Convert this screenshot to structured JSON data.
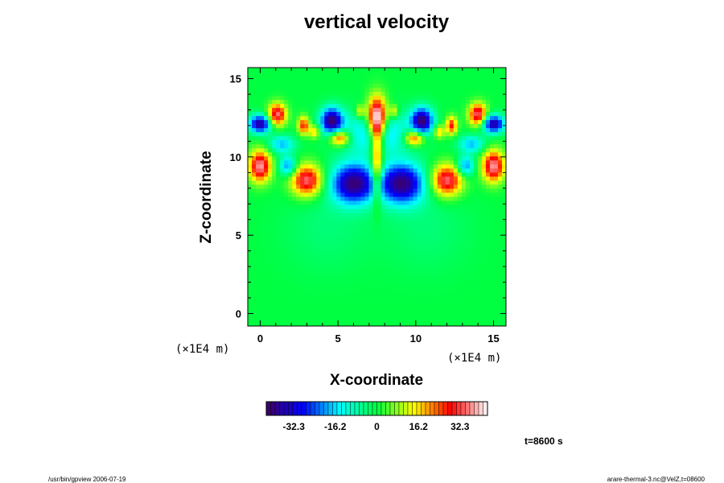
{
  "chart_data": {
    "type": "heatmap",
    "title": "vertical velocity",
    "xlabel": "X-coordinate",
    "ylabel": "Z-coordinate",
    "x_unit": "(×1E4 m)",
    "y_unit": "(×1E4 m)",
    "xlim": [
      -0.8,
      15.8
    ],
    "ylim": [
      -0.8,
      15.7
    ],
    "x_ticks": [
      0,
      5,
      10,
      15
    ],
    "y_ticks": [
      0,
      5,
      10,
      15
    ],
    "colorbar": {
      "ticks": [
        -32.3,
        -16.2,
        0,
        16.2,
        32.3
      ],
      "tick_labels": [
        "-32.3",
        "-16.2",
        "0",
        "16.2",
        "32.3"
      ],
      "range": [
        -43,
        43
      ],
      "colors": [
        "#400060",
        "#0000ff",
        "#00ffff",
        "#00ff40",
        "#ffff00",
        "#ff0000",
        "#ffffff"
      ]
    },
    "background_value": 0,
    "features": [
      {
        "x": 7.5,
        "z": 12.5,
        "value": 45,
        "sx": 0.45,
        "sz": 0.9
      },
      {
        "x": 7.5,
        "z": 10.5,
        "value": 24,
        "sx": 0.3,
        "sz": 1.5
      },
      {
        "x": 7.5,
        "z": 8.3,
        "value": 16,
        "sx": 0.2,
        "sz": 1.2
      },
      {
        "x": 6.0,
        "z": 8.3,
        "value": -40,
        "sx": 1.0,
        "sz": 0.9
      },
      {
        "x": 9.1,
        "z": 8.3,
        "value": -40,
        "sx": 1.0,
        "sz": 0.9
      },
      {
        "x": 3.0,
        "z": 8.5,
        "value": 36,
        "sx": 0.7,
        "sz": 0.7
      },
      {
        "x": 12.0,
        "z": 8.5,
        "value": 36,
        "sx": 0.7,
        "sz": 0.7
      },
      {
        "x": 0.0,
        "z": 9.4,
        "value": 38,
        "sx": 0.5,
        "sz": 0.7
      },
      {
        "x": 15.0,
        "z": 9.4,
        "value": 38,
        "sx": 0.5,
        "sz": 0.7
      },
      {
        "x": 0.0,
        "z": 12.1,
        "value": -38,
        "sx": 0.5,
        "sz": 0.4
      },
      {
        "x": 15.0,
        "z": 12.1,
        "value": -38,
        "sx": 0.5,
        "sz": 0.4
      },
      {
        "x": 1.1,
        "z": 12.7,
        "value": 36,
        "sx": 0.4,
        "sz": 0.5
      },
      {
        "x": 14.0,
        "z": 12.7,
        "value": 36,
        "sx": 0.4,
        "sz": 0.5
      },
      {
        "x": 2.8,
        "z": 12.0,
        "value": 28,
        "sx": 0.25,
        "sz": 0.4
      },
      {
        "x": 12.3,
        "z": 12.0,
        "value": 28,
        "sx": 0.25,
        "sz": 0.4
      },
      {
        "x": 4.6,
        "z": 12.3,
        "value": -40,
        "sx": 0.5,
        "sz": 0.6
      },
      {
        "x": 10.4,
        "z": 12.3,
        "value": -40,
        "sx": 0.5,
        "sz": 0.6
      },
      {
        "x": 5.1,
        "z": 11.2,
        "value": 30,
        "sx": 0.45,
        "sz": 0.35
      },
      {
        "x": 9.9,
        "z": 11.2,
        "value": 30,
        "sx": 0.45,
        "sz": 0.35
      },
      {
        "x": 1.8,
        "z": 9.4,
        "value": -22,
        "sx": 0.4,
        "sz": 0.45
      },
      {
        "x": 13.2,
        "z": 9.4,
        "value": -22,
        "sx": 0.4,
        "sz": 0.45
      },
      {
        "x": 1.4,
        "z": 10.8,
        "value": -18,
        "sx": 0.6,
        "sz": 0.4
      },
      {
        "x": 13.6,
        "z": 10.8,
        "value": -18,
        "sx": 0.6,
        "sz": 0.4
      },
      {
        "x": 3.5,
        "z": 11.6,
        "value": 18,
        "sx": 0.25,
        "sz": 0.3
      },
      {
        "x": 11.5,
        "z": 11.6,
        "value": 18,
        "sx": 0.25,
        "sz": 0.3
      },
      {
        "x": 6.4,
        "z": 12.9,
        "value": 16,
        "sx": 0.2,
        "sz": 0.3
      },
      {
        "x": 8.6,
        "z": 12.9,
        "value": 16,
        "sx": 0.2,
        "sz": 0.3
      },
      {
        "x": 7.5,
        "z": 11.5,
        "value": -20,
        "sx": 1.5,
        "sz": 1.0
      },
      {
        "x": 4.3,
        "z": 5.5,
        "value": -4,
        "sx": 2.0,
        "sz": 2.0
      },
      {
        "x": 10.7,
        "z": 5.5,
        "value": -4,
        "sx": 2.0,
        "sz": 2.0
      }
    ]
  },
  "footer": {
    "left": "/usr/bin/gpview 2006-07-19",
    "right": "arare-thermal-3.nc@VelZ,t=08600",
    "time": "t=8600 s"
  }
}
